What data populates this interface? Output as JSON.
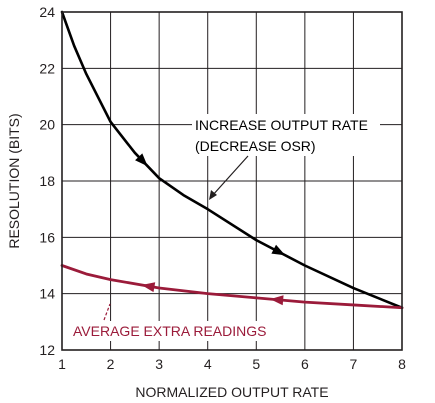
{
  "chart_data": {
    "type": "line",
    "xlabel": "NORMALIZED OUTPUT RATE",
    "ylabel": "RESOLUTION (BITS)",
    "xlim": [
      1,
      8
    ],
    "ylim": [
      12,
      24
    ],
    "xticks": [
      "1",
      "2",
      "3",
      "4",
      "5",
      "6",
      "7",
      "8"
    ],
    "yticks": [
      "12",
      "14",
      "16",
      "18",
      "20",
      "22",
      "24"
    ],
    "grid": true,
    "series": [
      {
        "color": "#000000",
        "x": [
          1,
          1.25,
          1.5,
          2,
          2.5,
          3,
          3.5,
          4,
          5,
          6,
          7,
          8
        ],
        "y": [
          24,
          22.8,
          21.8,
          20.1,
          19,
          18.1,
          17.5,
          17,
          15.9,
          15,
          14.2,
          13.5
        ]
      },
      {
        "color": "#9b1b3a",
        "x": [
          1,
          1.5,
          2,
          3,
          4,
          5,
          6,
          7,
          8
        ],
        "y": [
          15,
          14.7,
          14.5,
          14.2,
          14,
          13.85,
          13.7,
          13.6,
          13.5
        ]
      }
    ],
    "annotations": [
      {
        "lines": [
          "INCREASE OUTPUT RATE",
          "(DECREASE OSR)"
        ],
        "color": "#231f20"
      },
      {
        "lines": [
          "AVERAGE EXTRA READINGS"
        ],
        "color": "#9b1b3a"
      }
    ]
  }
}
